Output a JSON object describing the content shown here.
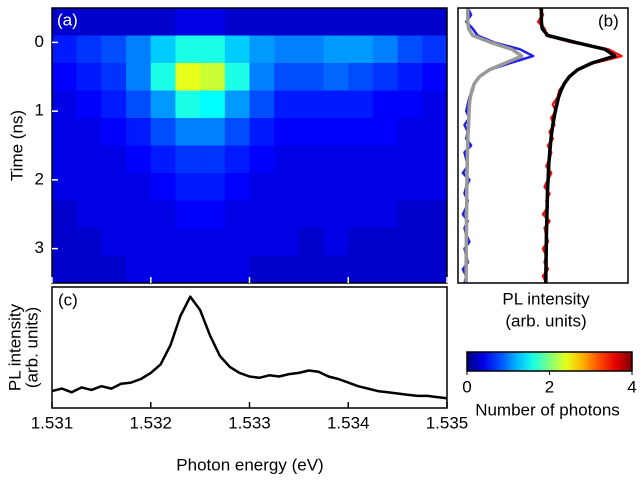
{
  "chart_data": [
    {
      "type": "heatmap",
      "panel_label": "(a)",
      "y_label": "Time (ns)",
      "xlim": [
        1.531,
        1.535
      ],
      "xticks": [
        1.531,
        1.532,
        1.533,
        1.534,
        1.535
      ],
      "ylim": [
        -0.5,
        3.5
      ],
      "yticks": [
        0,
        1,
        2,
        3
      ],
      "colormap": "jet",
      "z": [
        [
          0.3,
          0.3,
          0.3,
          0.3,
          0.3,
          0.4,
          0.4,
          0.3,
          0.3,
          0.3,
          0.3,
          0.3,
          0.3,
          0.3,
          0.3,
          0.3
        ],
        [
          0.6,
          0.7,
          0.8,
          1.0,
          1.3,
          1.6,
          1.6,
          1.3,
          1.1,
          1.0,
          1.0,
          1.1,
          1.1,
          1.0,
          0.8,
          0.7
        ],
        [
          0.5,
          0.6,
          0.7,
          1.0,
          1.6,
          2.4,
          2.3,
          1.6,
          1.0,
          0.8,
          0.8,
          0.9,
          0.8,
          0.7,
          0.6,
          0.5
        ],
        [
          0.4,
          0.5,
          0.6,
          0.8,
          1.1,
          1.6,
          1.5,
          1.1,
          0.8,
          0.6,
          0.6,
          0.6,
          0.6,
          0.5,
          0.5,
          0.4
        ],
        [
          0.4,
          0.4,
          0.5,
          0.6,
          0.8,
          1.0,
          1.0,
          0.8,
          0.6,
          0.5,
          0.5,
          0.5,
          0.5,
          0.5,
          0.4,
          0.4
        ],
        [
          0.4,
          0.4,
          0.4,
          0.5,
          0.6,
          0.7,
          0.7,
          0.6,
          0.5,
          0.4,
          0.4,
          0.4,
          0.4,
          0.4,
          0.4,
          0.4
        ],
        [
          0.4,
          0.4,
          0.4,
          0.4,
          0.5,
          0.6,
          0.6,
          0.5,
          0.4,
          0.4,
          0.4,
          0.4,
          0.4,
          0.4,
          0.4,
          0.4
        ],
        [
          0.3,
          0.4,
          0.4,
          0.4,
          0.4,
          0.5,
          0.5,
          0.4,
          0.4,
          0.4,
          0.4,
          0.4,
          0.4,
          0.4,
          0.3,
          0.3
        ],
        [
          0.3,
          0.3,
          0.4,
          0.4,
          0.4,
          0.4,
          0.4,
          0.4,
          0.4,
          0.4,
          0.3,
          0.4,
          0.3,
          0.3,
          0.3,
          0.3
        ],
        [
          0.3,
          0.3,
          0.3,
          0.4,
          0.4,
          0.4,
          0.4,
          0.4,
          0.3,
          0.3,
          0.3,
          0.3,
          0.3,
          0.3,
          0.3,
          0.3
        ]
      ],
      "zlim": [
        0,
        4
      ],
      "zticks": [
        0,
        2,
        4
      ],
      "colorbar_label": "Number of photons"
    },
    {
      "type": "line",
      "orientation": "horizontal",
      "panel_label": "(b)",
      "x_label": [
        "PL intensity",
        "(arb. units)"
      ],
      "xlim": [
        0,
        10.4
      ],
      "ylim": [
        -0.5,
        3.5
      ],
      "y": [
        -0.5,
        -0.4,
        -0.3,
        -0.2,
        -0.1,
        0,
        0.1,
        0.2,
        0.3,
        0.4,
        0.5,
        0.6,
        0.7,
        0.8,
        0.9,
        1.0,
        1.1,
        1.2,
        1.3,
        1.4,
        1.5,
        1.6,
        1.7,
        1.8,
        1.9,
        2.0,
        2.1,
        2.2,
        2.3,
        2.4,
        2.5,
        2.6,
        2.7,
        2.8,
        2.9,
        3.0,
        3.1,
        3.2,
        3.3,
        3.4,
        3.5
      ],
      "series": [
        {
          "color": "#1f1fe6",
          "values": [
            0.6,
            0.8,
            0.5,
            0.9,
            1.2,
            2.2,
            3.8,
            4.6,
            3.2,
            1.9,
            1.3,
            1.0,
            0.9,
            0.7,
            0.6,
            0.5,
            0.7,
            0.4,
            0.6,
            0.5,
            0.8,
            0.4,
            0.5,
            0.6,
            0.3,
            0.7,
            0.5,
            0.4,
            0.6,
            0.5,
            0.3,
            0.6,
            0.4,
            0.5,
            0.7,
            0.4,
            0.5,
            0.6,
            0.3,
            0.5,
            0.4
          ]
        },
        {
          "color": "#999999",
          "values": [
            0.6,
            0.6,
            0.6,
            0.65,
            0.9,
            2.0,
            3.3,
            3.9,
            2.9,
            1.9,
            1.3,
            1.0,
            0.85,
            0.75,
            0.7,
            0.68,
            0.66,
            0.64,
            0.62,
            0.6,
            0.59,
            0.58,
            0.57,
            0.56,
            0.55,
            0.55,
            0.54,
            0.54,
            0.53,
            0.53,
            0.52,
            0.52,
            0.52,
            0.51,
            0.51,
            0.51,
            0.5,
            0.5,
            0.5,
            0.5,
            0.5
          ]
        },
        {
          "color": "#ee1111",
          "values": [
            5.0,
            5.2,
            4.9,
            5.3,
            5.4,
            7.0,
            9.2,
            10.0,
            8.3,
            7.3,
            6.8,
            6.5,
            6.2,
            6.1,
            5.8,
            6.0,
            5.7,
            5.9,
            5.6,
            5.8,
            5.5,
            5.7,
            5.6,
            5.4,
            5.7,
            5.5,
            5.3,
            5.6,
            5.4,
            5.5,
            5.2,
            5.6,
            5.3,
            5.4,
            5.5,
            5.2,
            5.4,
            5.3,
            5.5,
            5.2,
            5.4
          ]
        },
        {
          "color": "#000000",
          "values": [
            5.1,
            5.1,
            5.1,
            5.15,
            5.5,
            7.2,
            9.0,
            9.6,
            8.2,
            7.3,
            6.8,
            6.5,
            6.3,
            6.15,
            6.05,
            5.95,
            5.87,
            5.8,
            5.74,
            5.69,
            5.65,
            5.61,
            5.58,
            5.55,
            5.53,
            5.51,
            5.49,
            5.47,
            5.46,
            5.45,
            5.44,
            5.43,
            5.42,
            5.41,
            5.4,
            5.4,
            5.39,
            5.39,
            5.38,
            5.38,
            5.37
          ]
        }
      ]
    },
    {
      "type": "line",
      "panel_label": "(c)",
      "y_label": [
        "PL intensity",
        "(arb. units)"
      ],
      "x_label": "Photon energy (eV)",
      "xlim": [
        1.531,
        1.535
      ],
      "xticks": [
        1.531,
        1.532,
        1.533,
        1.534,
        1.535
      ],
      "ylim": [
        0,
        10
      ],
      "x": [
        1.531,
        1.5311,
        1.5312,
        1.5313,
        1.5314,
        1.5315,
        1.5316,
        1.5317,
        1.5318,
        1.5319,
        1.532,
        1.5321,
        1.5322,
        1.5323,
        1.5324,
        1.5325,
        1.5326,
        1.5327,
        1.5328,
        1.5329,
        1.533,
        1.5331,
        1.5332,
        1.5333,
        1.5334,
        1.5335,
        1.5336,
        1.5337,
        1.5338,
        1.5339,
        1.534,
        1.5341,
        1.5342,
        1.5343,
        1.5344,
        1.5345,
        1.5346,
        1.5347,
        1.5348,
        1.5349,
        1.535
      ],
      "series": [
        {
          "color": "#000000",
          "values": [
            1.4,
            1.6,
            1.3,
            1.7,
            1.5,
            1.8,
            1.6,
            2.0,
            2.1,
            2.4,
            2.9,
            3.6,
            5.2,
            7.6,
            9.2,
            8.1,
            6.0,
            4.3,
            3.4,
            2.9,
            2.6,
            2.5,
            2.7,
            2.6,
            2.8,
            2.9,
            3.1,
            3.0,
            2.6,
            2.4,
            2.1,
            1.8,
            1.6,
            1.4,
            1.3,
            1.2,
            1.1,
            1.0,
            1.0,
            0.9,
            0.8
          ]
        }
      ]
    }
  ]
}
